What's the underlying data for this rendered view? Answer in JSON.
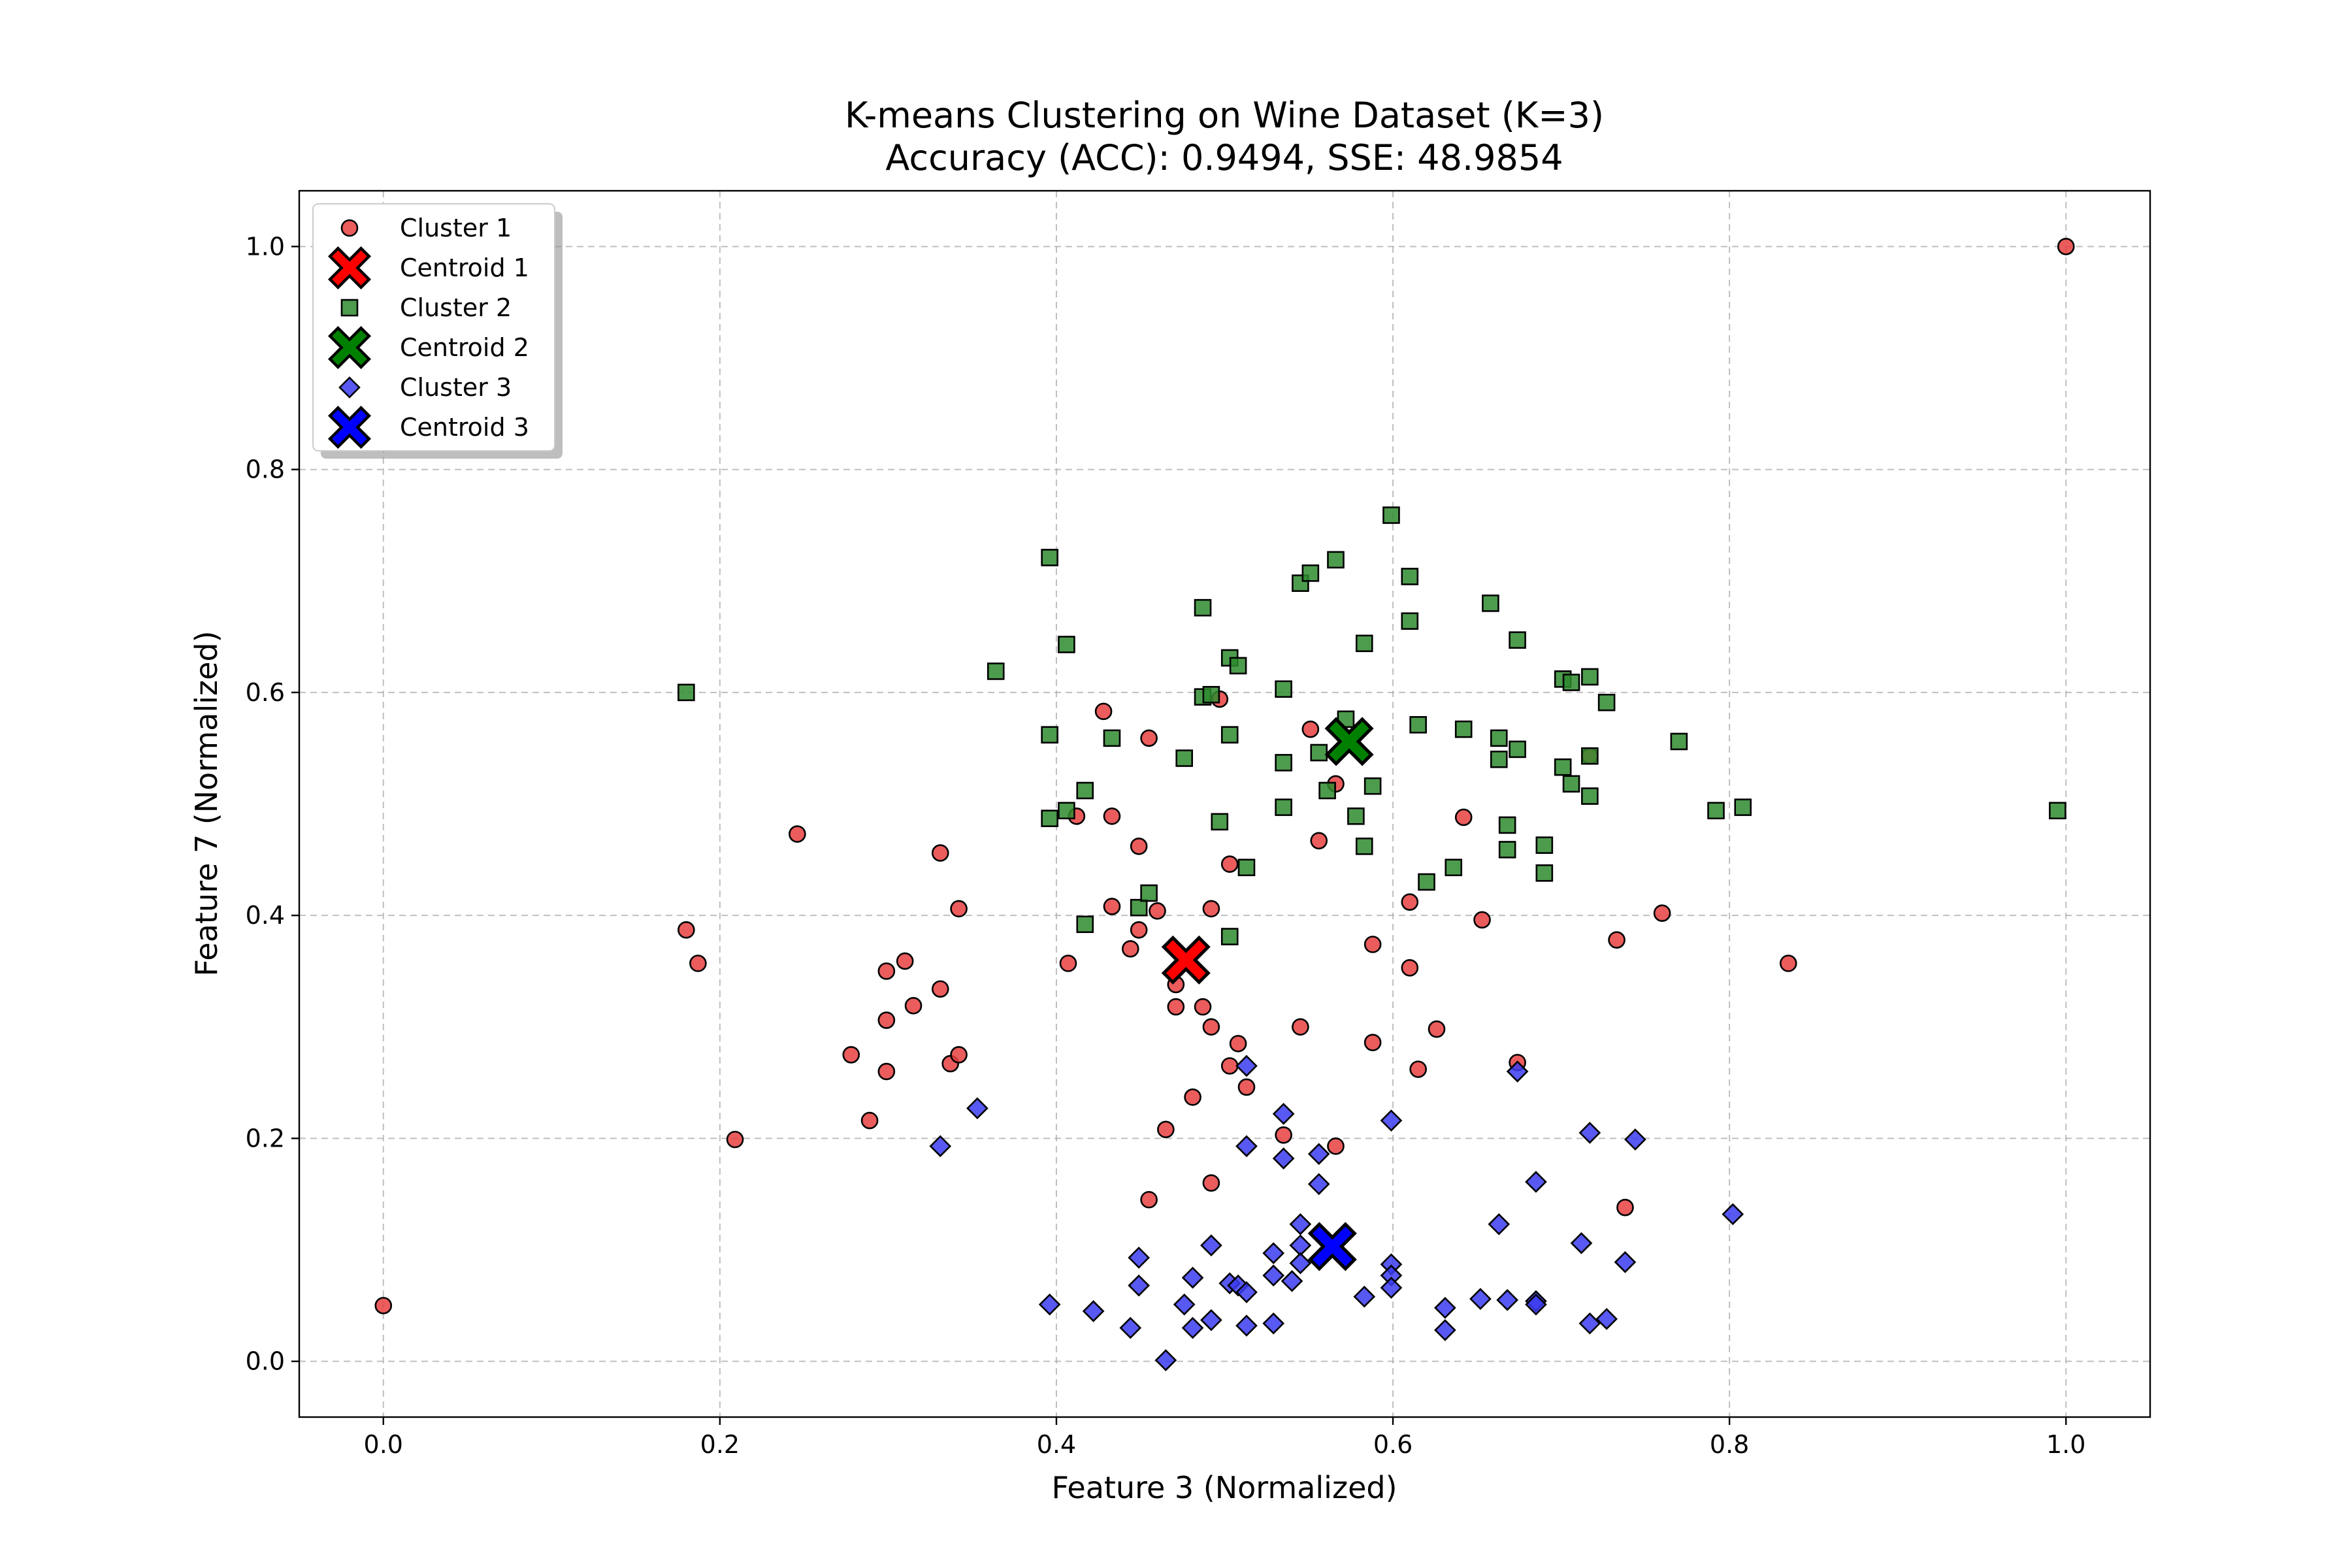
{
  "chart_data": {
    "type": "scatter",
    "title": "K-means Clustering on Wine Dataset (K=3)",
    "subtitle": "Accuracy (ACC): 0.9494, SSE: 48.9854",
    "xlabel": "Feature 3 (Normalized)",
    "ylabel": "Feature 7 (Normalized)",
    "xlim": [
      -0.05,
      1.05
    ],
    "ylim": [
      -0.05,
      1.05
    ],
    "xticks": [
      "0.0",
      "0.2",
      "0.4",
      "0.6",
      "0.8",
      "1.0"
    ],
    "yticks": [
      "0.0",
      "0.2",
      "0.4",
      "0.6",
      "0.8",
      "1.0"
    ],
    "grid": true,
    "legend_position": "top-left",
    "series": [
      {
        "name": "Cluster 1",
        "marker": "circle",
        "color": "#e8403f",
        "points": [
          [
            0.0,
            0.05
          ],
          [
            0.18,
            0.387
          ],
          [
            0.187,
            0.357
          ],
          [
            0.209,
            0.199
          ],
          [
            0.246,
            0.473
          ],
          [
            0.278,
            0.275
          ],
          [
            0.289,
            0.216
          ],
          [
            0.299,
            0.35
          ],
          [
            0.299,
            0.306
          ],
          [
            0.299,
            0.26
          ],
          [
            0.31,
            0.359
          ],
          [
            0.315,
            0.319
          ],
          [
            0.331,
            0.456
          ],
          [
            0.331,
            0.334
          ],
          [
            0.337,
            0.267
          ],
          [
            0.342,
            0.275
          ],
          [
            0.342,
            0.406
          ],
          [
            0.407,
            0.357
          ],
          [
            0.412,
            0.489
          ],
          [
            0.428,
            0.583
          ],
          [
            0.433,
            0.489
          ],
          [
            0.433,
            0.408
          ],
          [
            0.444,
            0.37
          ],
          [
            0.449,
            0.462
          ],
          [
            0.449,
            0.387
          ],
          [
            0.455,
            0.559
          ],
          [
            0.455,
            0.145
          ],
          [
            0.46,
            0.404
          ],
          [
            0.465,
            0.208
          ],
          [
            0.471,
            0.338
          ],
          [
            0.471,
            0.318
          ],
          [
            0.481,
            0.237
          ],
          [
            0.487,
            0.318
          ],
          [
            0.492,
            0.3
          ],
          [
            0.492,
            0.406
          ],
          [
            0.492,
            0.16
          ],
          [
            0.497,
            0.594
          ],
          [
            0.503,
            0.446
          ],
          [
            0.503,
            0.265
          ],
          [
            0.508,
            0.285
          ],
          [
            0.513,
            0.246
          ],
          [
            0.535,
            0.203
          ],
          [
            0.545,
            0.3
          ],
          [
            0.551,
            0.567
          ],
          [
            0.556,
            0.467
          ],
          [
            0.566,
            0.518
          ],
          [
            0.566,
            0.193
          ],
          [
            0.588,
            0.374
          ],
          [
            0.588,
            0.286
          ],
          [
            0.61,
            0.412
          ],
          [
            0.61,
            0.353
          ],
          [
            0.615,
            0.262
          ],
          [
            0.626,
            0.298
          ],
          [
            0.642,
            0.488
          ],
          [
            0.653,
            0.396
          ],
          [
            0.674,
            0.268
          ],
          [
            0.717,
            0.543
          ],
          [
            0.733,
            0.378
          ],
          [
            0.738,
            0.138
          ],
          [
            0.76,
            0.402
          ],
          [
            0.835,
            0.357
          ],
          [
            1.0,
            1.0
          ]
        ]
      },
      {
        "name": "Cluster 2",
        "marker": "square",
        "color": "#2e8b2e",
        "points": [
          [
            0.18,
            0.6
          ],
          [
            0.364,
            0.619
          ],
          [
            0.396,
            0.721
          ],
          [
            0.396,
            0.562
          ],
          [
            0.396,
            0.487
          ],
          [
            0.406,
            0.643
          ],
          [
            0.406,
            0.494
          ],
          [
            0.417,
            0.512
          ],
          [
            0.417,
            0.392
          ],
          [
            0.433,
            0.559
          ],
          [
            0.449,
            0.407
          ],
          [
            0.455,
            0.42
          ],
          [
            0.476,
            0.541
          ],
          [
            0.487,
            0.676
          ],
          [
            0.487,
            0.596
          ],
          [
            0.492,
            0.598
          ],
          [
            0.497,
            0.484
          ],
          [
            0.503,
            0.631
          ],
          [
            0.503,
            0.562
          ],
          [
            0.503,
            0.381
          ],
          [
            0.508,
            0.624
          ],
          [
            0.513,
            0.443
          ],
          [
            0.535,
            0.603
          ],
          [
            0.535,
            0.537
          ],
          [
            0.535,
            0.497
          ],
          [
            0.545,
            0.698
          ],
          [
            0.551,
            0.707
          ],
          [
            0.556,
            0.546
          ],
          [
            0.561,
            0.512
          ],
          [
            0.566,
            0.719
          ],
          [
            0.572,
            0.576
          ],
          [
            0.578,
            0.489
          ],
          [
            0.583,
            0.644
          ],
          [
            0.583,
            0.462
          ],
          [
            0.588,
            0.516
          ],
          [
            0.599,
            0.759
          ],
          [
            0.61,
            0.704
          ],
          [
            0.61,
            0.664
          ],
          [
            0.615,
            0.571
          ],
          [
            0.62,
            0.43
          ],
          [
            0.636,
            0.443
          ],
          [
            0.642,
            0.567
          ],
          [
            0.658,
            0.68
          ],
          [
            0.663,
            0.559
          ],
          [
            0.663,
            0.54
          ],
          [
            0.668,
            0.481
          ],
          [
            0.668,
            0.459
          ],
          [
            0.674,
            0.549
          ],
          [
            0.674,
            0.647
          ],
          [
            0.69,
            0.463
          ],
          [
            0.69,
            0.438
          ],
          [
            0.701,
            0.612
          ],
          [
            0.701,
            0.533
          ],
          [
            0.706,
            0.609
          ],
          [
            0.706,
            0.518
          ],
          [
            0.717,
            0.614
          ],
          [
            0.717,
            0.543
          ],
          [
            0.717,
            0.507
          ],
          [
            0.727,
            0.591
          ],
          [
            0.77,
            0.556
          ],
          [
            0.792,
            0.494
          ],
          [
            0.808,
            0.497
          ],
          [
            0.995,
            0.494
          ]
        ]
      },
      {
        "name": "Cluster 3",
        "marker": "diamond",
        "color": "#3b3bf0",
        "points": [
          [
            0.331,
            0.193
          ],
          [
            0.353,
            0.227
          ],
          [
            0.396,
            0.051
          ],
          [
            0.422,
            0.045
          ],
          [
            0.444,
            0.03
          ],
          [
            0.449,
            0.093
          ],
          [
            0.449,
            0.068
          ],
          [
            0.465,
            0.001
          ],
          [
            0.476,
            0.051
          ],
          [
            0.481,
            0.075
          ],
          [
            0.481,
            0.03
          ],
          [
            0.492,
            0.104
          ],
          [
            0.492,
            0.037
          ],
          [
            0.503,
            0.07
          ],
          [
            0.508,
            0.068
          ],
          [
            0.513,
            0.265
          ],
          [
            0.513,
            0.193
          ],
          [
            0.513,
            0.062
          ],
          [
            0.513,
            0.032
          ],
          [
            0.529,
            0.097
          ],
          [
            0.529,
            0.077
          ],
          [
            0.529,
            0.034
          ],
          [
            0.535,
            0.222
          ],
          [
            0.535,
            0.182
          ],
          [
            0.54,
            0.072
          ],
          [
            0.545,
            0.123
          ],
          [
            0.545,
            0.104
          ],
          [
            0.545,
            0.088
          ],
          [
            0.556,
            0.186
          ],
          [
            0.556,
            0.159
          ],
          [
            0.583,
            0.058
          ],
          [
            0.599,
            0.216
          ],
          [
            0.599,
            0.087
          ],
          [
            0.599,
            0.077
          ],
          [
            0.599,
            0.066
          ],
          [
            0.631,
            0.048
          ],
          [
            0.631,
            0.028
          ],
          [
            0.652,
            0.056
          ],
          [
            0.663,
            0.123
          ],
          [
            0.668,
            0.055
          ],
          [
            0.674,
            0.26
          ],
          [
            0.685,
            0.161
          ],
          [
            0.685,
            0.054
          ],
          [
            0.685,
            0.051
          ],
          [
            0.712,
            0.106
          ],
          [
            0.717,
            0.205
          ],
          [
            0.717,
            0.034
          ],
          [
            0.727,
            0.038
          ],
          [
            0.738,
            0.089
          ],
          [
            0.744,
            0.199
          ],
          [
            0.802,
            0.132
          ]
        ]
      }
    ],
    "centroids": [
      {
        "name": "Centroid 1",
        "color": "#ff0000",
        "x": 0.477,
        "y": 0.36
      },
      {
        "name": "Centroid 2",
        "color": "#008000",
        "x": 0.574,
        "y": 0.556
      },
      {
        "name": "Centroid 3",
        "color": "#0000ff",
        "x": 0.564,
        "y": 0.103
      }
    ],
    "legend": [
      "Cluster 1",
      "Centroid 1",
      "Cluster 2",
      "Centroid 2",
      "Cluster 3",
      "Centroid 3"
    ]
  }
}
